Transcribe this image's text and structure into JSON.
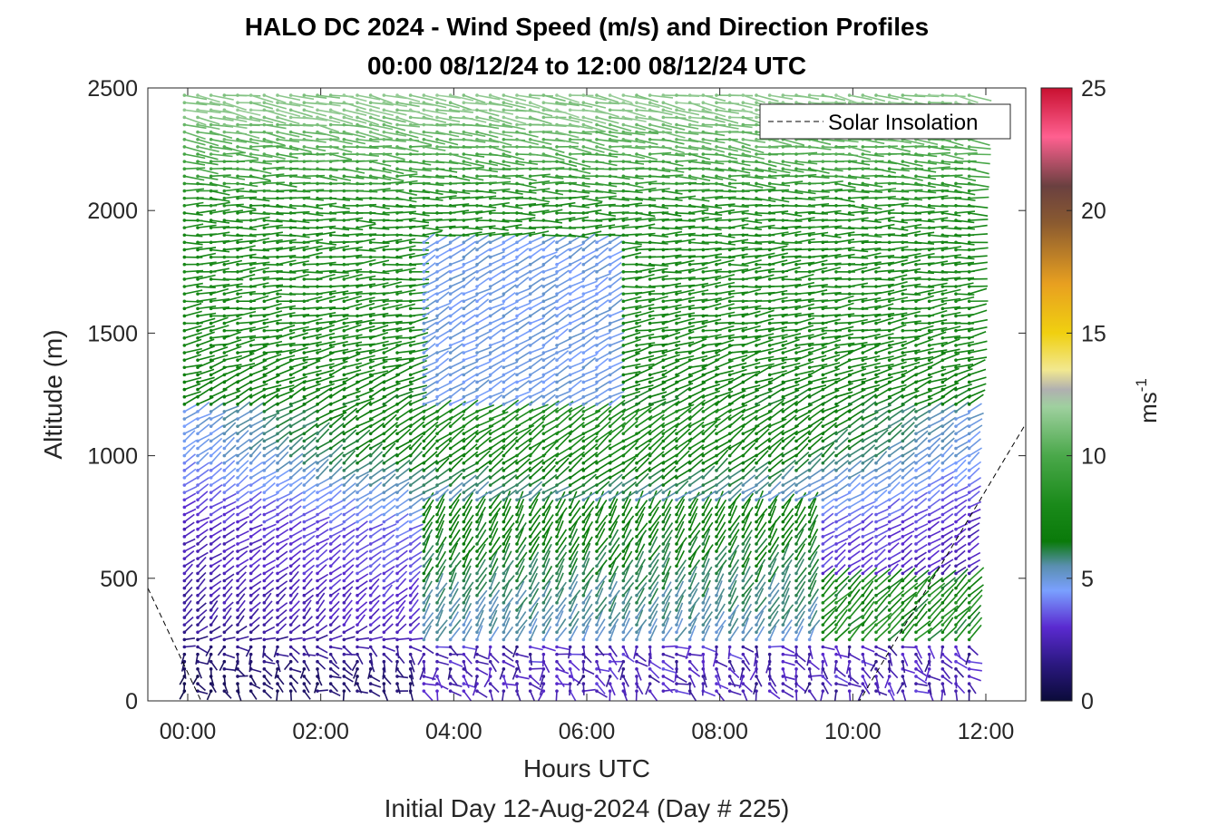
{
  "chart_data": {
    "type": "wind-barb-profile",
    "title_line1": "HALO DC 2024 - Wind Speed (m/s) and Direction Profiles",
    "title_line2": "00:00 08/12/24 to 12:00 08/12/24  UTC",
    "xlabel": "Hours UTC",
    "subtitle": "Initial Day 12-Aug-2024 (Day # 225)",
    "ylabel": "Altitude (m)",
    "xlim": [
      -0.6,
      12.6
    ],
    "ylim": [
      0,
      2500
    ],
    "x_ticks": [
      0,
      2,
      4,
      6,
      8,
      10,
      12
    ],
    "x_tick_labels": [
      "00:00",
      "02:00",
      "04:00",
      "06:00",
      "08:00",
      "10:00",
      "12:00"
    ],
    "y_ticks": [
      0,
      500,
      1000,
      1500,
      2000,
      2500
    ],
    "y_tick_labels": [
      "0",
      "500",
      "1000",
      "1500",
      "2000",
      "2500"
    ],
    "legend": {
      "label": "Solar Insolation",
      "placement": "top-right",
      "style": "dashed"
    },
    "colorbar": {
      "label": "ms",
      "label_exponent": "-1",
      "range": [
        0,
        25
      ],
      "ticks": [
        0,
        5,
        10,
        15,
        20,
        25
      ],
      "tick_labels": [
        "0",
        "5",
        "10",
        "15",
        "20",
        "25"
      ],
      "colors": [
        {
          "v": 0,
          "c": "#0b0b3a"
        },
        {
          "v": 1.5,
          "c": "#2b1880"
        },
        {
          "v": 3,
          "c": "#5a2ad0"
        },
        {
          "v": 4.5,
          "c": "#7aa0ff"
        },
        {
          "v": 5.5,
          "c": "#5a8fb0"
        },
        {
          "v": 6.5,
          "c": "#0a7a0a"
        },
        {
          "v": 8,
          "c": "#1a8a1a"
        },
        {
          "v": 10,
          "c": "#4aa84a"
        },
        {
          "v": 12,
          "c": "#9fd09f"
        },
        {
          "v": 12.7,
          "c": "#b0b0b0"
        },
        {
          "v": 13.5,
          "c": "#f2e890"
        },
        {
          "v": 15,
          "c": "#f0d010"
        },
        {
          "v": 17,
          "c": "#e8a020"
        },
        {
          "v": 19.5,
          "c": "#8a5a30"
        },
        {
          "v": 21,
          "c": "#6a4040"
        },
        {
          "v": 23,
          "c": "#ff6090"
        },
        {
          "v": 25,
          "c": "#c81030"
        }
      ]
    },
    "solar_insolation": {
      "x": [
        -0.6,
        0.2,
        10.1,
        12.6
      ],
      "y": [
        460,
        0,
        0,
        1130
      ]
    },
    "wind_profiles": {
      "x_start": -0.05,
      "x_step": 0.2,
      "x_count": 60,
      "y_start": 40,
      "y_step": 30,
      "y_count": 82,
      "sample_levels": [
        {
          "altitude": 100,
          "speed_ms": 1.0,
          "direction_deg": 180
        },
        {
          "altitude": 300,
          "speed_ms": 2.5,
          "direction_deg": 320
        },
        {
          "altitude": 700,
          "speed_ms": 3.5,
          "direction_deg": 300
        },
        {
          "altitude": 1000,
          "speed_ms": 6.0,
          "direction_deg": 310
        },
        {
          "altitude": 1500,
          "speed_ms": 7.5,
          "direction_deg": 280
        },
        {
          "altitude": 2000,
          "speed_ms": 8.0,
          "direction_deg": 270
        },
        {
          "altitude": 2400,
          "speed_ms": 11.5,
          "direction_deg": 260
        }
      ]
    }
  }
}
